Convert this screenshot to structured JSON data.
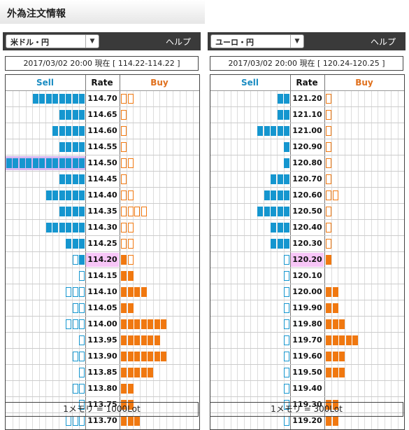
{
  "page_title": "外為注文情報",
  "help_label": "ヘルプ",
  "headers": {
    "sell": "Sell",
    "rate": "Rate",
    "buy": "Buy"
  },
  "colors": {
    "sell": "#1596cf",
    "buy": "#f07810",
    "current_rate_bg": "#f7c6f7",
    "header_bg": "#3a3a3a"
  },
  "panels": [
    {
      "pair": "米ドル・円",
      "date_line": "2017/03/02  20:00 現在 [ 114.22-114.22 ]",
      "footer": "1メモリ = 1000Lot",
      "current_rate": "114.20",
      "rows": [
        {
          "rate": "114.70",
          "sell": 8,
          "sell_open": 0,
          "buy": 0,
          "buy_open": 2
        },
        {
          "rate": "114.65",
          "sell": 4,
          "sell_open": 0,
          "buy": 0,
          "buy_open": 1
        },
        {
          "rate": "114.60",
          "sell": 5,
          "sell_open": 0,
          "buy": 0,
          "buy_open": 1
        },
        {
          "rate": "114.55",
          "sell": 4,
          "sell_open": 0,
          "buy": 0,
          "buy_open": 1
        },
        {
          "rate": "114.50",
          "sell": 12,
          "sell_open": 0,
          "buy": 0,
          "buy_open": 2,
          "highlight": true
        },
        {
          "rate": "114.45",
          "sell": 4,
          "sell_open": 0,
          "buy": 0,
          "buy_open": 1
        },
        {
          "rate": "114.40",
          "sell": 6,
          "sell_open": 0,
          "buy": 0,
          "buy_open": 2
        },
        {
          "rate": "114.35",
          "sell": 4,
          "sell_open": 0,
          "buy": 0,
          "buy_open": 4
        },
        {
          "rate": "114.30",
          "sell": 6,
          "sell_open": 0,
          "buy": 0,
          "buy_open": 2
        },
        {
          "rate": "114.25",
          "sell": 3,
          "sell_open": 0,
          "buy": 0,
          "buy_open": 2
        },
        {
          "rate": "114.20",
          "sell": 1,
          "sell_open": 1,
          "buy": 1,
          "buy_open": 1
        },
        {
          "rate": "114.15",
          "sell": 0,
          "sell_open": 1,
          "buy": 2,
          "buy_open": 0
        },
        {
          "rate": "114.10",
          "sell": 0,
          "sell_open": 3,
          "buy": 4,
          "buy_open": 0
        },
        {
          "rate": "114.05",
          "sell": 0,
          "sell_open": 2,
          "buy": 2,
          "buy_open": 0
        },
        {
          "rate": "114.00",
          "sell": 0,
          "sell_open": 3,
          "buy": 7,
          "buy_open": 0
        },
        {
          "rate": "113.95",
          "sell": 0,
          "sell_open": 1,
          "buy": 6,
          "buy_open": 0
        },
        {
          "rate": "113.90",
          "sell": 0,
          "sell_open": 2,
          "buy": 7,
          "buy_open": 0
        },
        {
          "rate": "113.85",
          "sell": 0,
          "sell_open": 1,
          "buy": 5,
          "buy_open": 0
        },
        {
          "rate": "113.80",
          "sell": 0,
          "sell_open": 2,
          "buy": 2,
          "buy_open": 0
        },
        {
          "rate": "113.75",
          "sell": 0,
          "sell_open": 1,
          "buy": 2,
          "buy_open": 0
        },
        {
          "rate": "113.70",
          "sell": 0,
          "sell_open": 3,
          "buy": 3,
          "buy_open": 0
        }
      ]
    },
    {
      "pair": "ユーロ・円",
      "date_line": "2017/03/02  20:00 現在 [ 120.24-120.25 ]",
      "footer": "1メモリ = 300Lot",
      "current_rate": "120.20",
      "rows": [
        {
          "rate": "121.20",
          "sell": 2,
          "sell_open": 0,
          "buy": 0,
          "buy_open": 1
        },
        {
          "rate": "121.10",
          "sell": 2,
          "sell_open": 0,
          "buy": 0,
          "buy_open": 1
        },
        {
          "rate": "121.00",
          "sell": 5,
          "sell_open": 0,
          "buy": 0,
          "buy_open": 1
        },
        {
          "rate": "120.90",
          "sell": 1,
          "sell_open": 0,
          "buy": 0,
          "buy_open": 1
        },
        {
          "rate": "120.80",
          "sell": 1,
          "sell_open": 0,
          "buy": 0,
          "buy_open": 1
        },
        {
          "rate": "120.70",
          "sell": 3,
          "sell_open": 0,
          "buy": 0,
          "buy_open": 1
        },
        {
          "rate": "120.60",
          "sell": 4,
          "sell_open": 0,
          "buy": 0,
          "buy_open": 2
        },
        {
          "rate": "120.50",
          "sell": 5,
          "sell_open": 0,
          "buy": 0,
          "buy_open": 1
        },
        {
          "rate": "120.40",
          "sell": 3,
          "sell_open": 0,
          "buy": 0,
          "buy_open": 1
        },
        {
          "rate": "120.30",
          "sell": 3,
          "sell_open": 0,
          "buy": 0,
          "buy_open": 1
        },
        {
          "rate": "120.20",
          "sell": 0,
          "sell_open": 1,
          "buy": 1,
          "buy_open": 0
        },
        {
          "rate": "120.10",
          "sell": 0,
          "sell_open": 1,
          "buy": 0,
          "buy_open": 0
        },
        {
          "rate": "120.00",
          "sell": 0,
          "sell_open": 1,
          "buy": 2,
          "buy_open": 0
        },
        {
          "rate": "119.90",
          "sell": 0,
          "sell_open": 1,
          "buy": 2,
          "buy_open": 0
        },
        {
          "rate": "119.80",
          "sell": 0,
          "sell_open": 1,
          "buy": 3,
          "buy_open": 0
        },
        {
          "rate": "119.70",
          "sell": 0,
          "sell_open": 1,
          "buy": 5,
          "buy_open": 0
        },
        {
          "rate": "119.60",
          "sell": 0,
          "sell_open": 1,
          "buy": 3,
          "buy_open": 0
        },
        {
          "rate": "119.50",
          "sell": 0,
          "sell_open": 1,
          "buy": 3,
          "buy_open": 0
        },
        {
          "rate": "119.40",
          "sell": 0,
          "sell_open": 1,
          "buy": 0,
          "buy_open": 0
        },
        {
          "rate": "119.30",
          "sell": 0,
          "sell_open": 1,
          "buy": 2,
          "buy_open": 0
        },
        {
          "rate": "119.20",
          "sell": 0,
          "sell_open": 1,
          "buy": 2,
          "buy_open": 0
        }
      ]
    }
  ]
}
